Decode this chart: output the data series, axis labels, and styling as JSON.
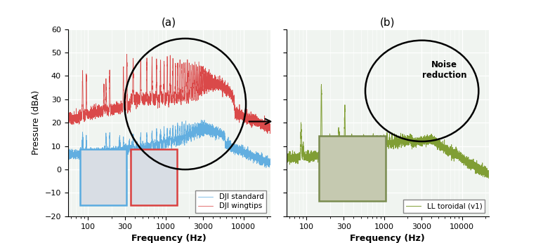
{
  "title_a": "(a)",
  "title_b": "(b)",
  "xlabel": "Frequency (Hz)",
  "ylabel": "Pressure (dBA)",
  "ylim": [
    -20,
    60
  ],
  "yticks": [
    -20,
    -10,
    0,
    10,
    20,
    30,
    40,
    50,
    60
  ],
  "xticks_log": [
    100,
    300,
    1000,
    3000,
    10000
  ],
  "xlim_log": [
    55,
    22000
  ],
  "color_blue": "#5aabe0",
  "color_red": "#d94040",
  "color_green": "#7a9a2a",
  "legend_a": [
    "DJI standard",
    "DJI wingtips"
  ],
  "legend_b": [
    "LL toroidal (v1)"
  ],
  "noise_reduction_text": "Noise\nreduction",
  "bg_color": "#f0f4f0",
  "grid_color": "#ffffff"
}
